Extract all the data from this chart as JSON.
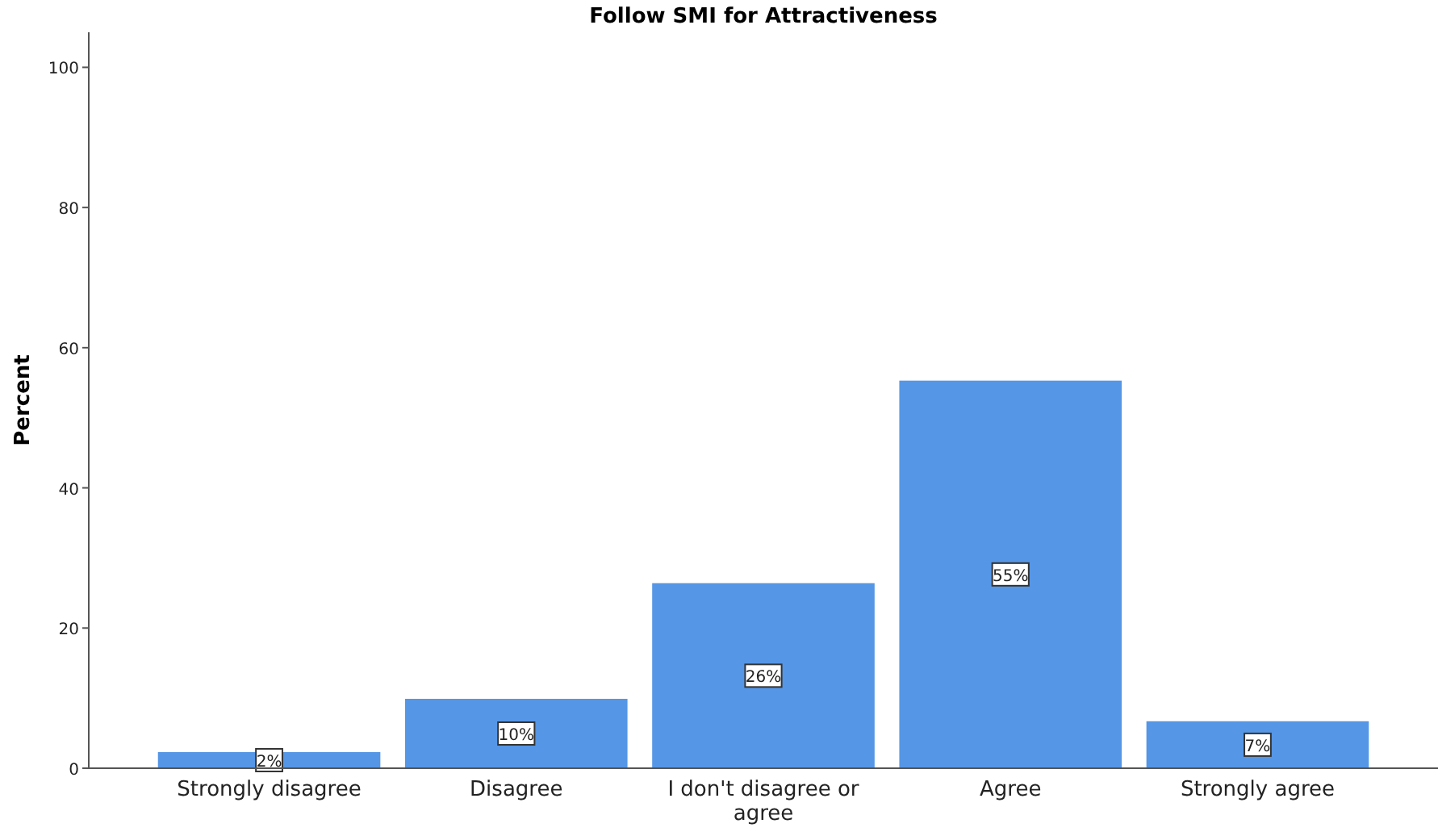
{
  "chart_data": {
    "type": "bar",
    "title": "Follow SMI for Attractiveness",
    "ylabel": "Percent",
    "categories": [
      "Strongly disagree",
      "Disagree",
      "I don't disagree or agree",
      "Agree",
      "Strongly agree"
    ],
    "values": [
      2.3,
      9.9,
      26.4,
      55.3,
      6.7
    ],
    "value_labels": [
      "2%",
      "10%",
      "26%",
      "55%",
      "7%"
    ],
    "color": "#5596e6",
    "ylim": [
      0,
      105
    ],
    "yticks": [
      0,
      20,
      40,
      60,
      80,
      100
    ],
    "grid": false
  }
}
